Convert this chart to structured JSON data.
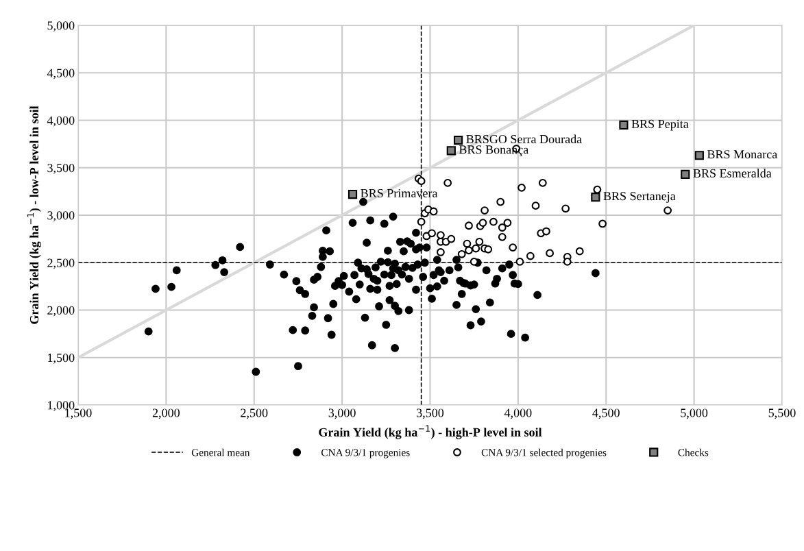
{
  "chart_data": {
    "type": "scatter",
    "xlabel": "Grain Yield (kg ha$^{−1}$) - high-P level in soil",
    "ylabel": "Grain Yield (kg ha$^{−1}$) - low-P level in soil",
    "xlim": [
      1500,
      5500
    ],
    "xticks": [
      {
        "value": 1500,
        "label": "1,500"
      },
      {
        "value": 2000,
        "label": "2,000"
      },
      {
        "value": 2500,
        "label": "2,500"
      },
      {
        "value": 3000,
        "label": "3,000"
      },
      {
        "value": 3500,
        "label": "3,500"
      },
      {
        "value": 4000,
        "label": "4,000"
      },
      {
        "value": 4500,
        "label": "4,500"
      },
      {
        "value": 5000,
        "label": "5,000"
      },
      {
        "value": 5500,
        "label": "5,500"
      }
    ],
    "ylim": [
      1000,
      5000
    ],
    "yticks": [
      {
        "value": 1000,
        "label": "1,000"
      },
      {
        "value": 1500,
        "label": "1,500"
      },
      {
        "value": 2000,
        "label": "2,000"
      },
      {
        "value": 2500,
        "label": "2,500"
      },
      {
        "value": 3000,
        "label": "3,000"
      },
      {
        "value": 3500,
        "label": "3,500"
      },
      {
        "value": 4000,
        "label": "4,000"
      },
      {
        "value": 4500,
        "label": "4,500"
      },
      {
        "value": 5000,
        "label": "5,000"
      }
    ],
    "grid": true,
    "legend": "bottom",
    "ref_lines": [
      {
        "axis": "y",
        "value": 2500,
        "label": "General mean",
        "color": "#000000",
        "line_style": "dashed"
      },
      {
        "axis": "x",
        "value": 3450,
        "color": "#000000",
        "line_style": "dashed"
      }
    ],
    "series": [
      {
        "type": "line",
        "color": "#d9d9d9",
        "marker": "none",
        "x": [
          1500,
          5000
        ],
        "values": [
          1500,
          5000
        ]
      },
      {
        "name": "CNA 9/3/1 progenies",
        "color": "#000000",
        "marker": "circle",
        "x": [
          1900,
          1940,
          2030,
          2060,
          2280,
          2320,
          2330,
          2420,
          2510,
          2590,
          2670,
          2720,
          2740,
          2750,
          2760,
          2790,
          2790,
          2830,
          2840,
          2840,
          2860,
          2880,
          2890,
          2890,
          2910,
          2920,
          2930,
          2940,
          2950,
          2960,
          2980,
          3000,
          3010,
          3040,
          3060,
          3070,
          3080,
          3090,
          3100,
          3110,
          3120,
          3130,
          3140,
          3140,
          3150,
          3160,
          3160,
          3170,
          3180,
          3190,
          3200,
          3200,
          3210,
          3220,
          3240,
          3240,
          3250,
          3260,
          3260,
          3270,
          3270,
          3280,
          3290,
          3290,
          3300,
          3300,
          3300,
          3310,
          3320,
          3320,
          3330,
          3340,
          3350,
          3360,
          3370,
          3380,
          3380,
          3390,
          3400,
          3420,
          3420,
          3420,
          3430,
          3440,
          3460,
          3470,
          3480,
          3500,
          3510,
          3520,
          3540,
          3540,
          3550,
          3560,
          3580,
          3610,
          3650,
          3650,
          3660,
          3670,
          3680,
          3690,
          3700,
          3730,
          3730,
          3750,
          3760,
          3770,
          3790,
          3820,
          3840,
          3870,
          3880,
          3910,
          3950,
          3960,
          3970,
          3980,
          4000,
          4040,
          4110,
          4440
        ],
        "values": [
          1775,
          2225,
          2245,
          2420,
          2475,
          2525,
          2400,
          2665,
          1350,
          2480,
          2375,
          1790,
          2305,
          1410,
          2210,
          1785,
          2170,
          1940,
          2030,
          2320,
          2350,
          2455,
          2625,
          2560,
          2840,
          1915,
          2620,
          1740,
          2065,
          2255,
          2305,
          2265,
          2360,
          2195,
          2920,
          2370,
          2115,
          2500,
          2270,
          2440,
          3140,
          1920,
          2430,
          2710,
          2380,
          2225,
          2945,
          1630,
          2330,
          2450,
          2310,
          2215,
          2040,
          2510,
          2910,
          2375,
          1845,
          2625,
          2505,
          2105,
          2255,
          2370,
          2440,
          2985,
          1600,
          2045,
          2490,
          2275,
          1990,
          2420,
          2720,
          2375,
          2620,
          2455,
          2725,
          2330,
          2000,
          2700,
          2445,
          2215,
          2640,
          2815,
          2480,
          2660,
          2350,
          2500,
          2660,
          2230,
          2120,
          2370,
          2250,
          2530,
          2420,
          2400,
          2310,
          2420,
          2055,
          2530,
          2450,
          2310,
          2170,
          2285,
          2280,
          2260,
          1840,
          2270,
          2010,
          2500,
          1880,
          2420,
          2080,
          2280,
          2330,
          2440,
          2480,
          1750,
          2370,
          2280,
          2275,
          1710,
          2160,
          2390
        ]
      },
      {
        "name": "CNA 9/3/1 selected progenies",
        "color": "#ffffff",
        "marker": "circle",
        "x": [
          3435,
          3450,
          3450,
          3470,
          3480,
          3490,
          3520,
          3510,
          3560,
          3560,
          3560,
          3590,
          3600,
          3620,
          3680,
          3710,
          3720,
          3720,
          3750,
          3760,
          3780,
          3785,
          3800,
          3810,
          3810,
          3830,
          3860,
          3900,
          3910,
          3910,
          3940,
          3970,
          3990,
          4010,
          4020,
          4070,
          4100,
          4130,
          4140,
          4160,
          4180,
          4270,
          4280,
          4280,
          4350,
          4450,
          4480,
          4850
        ],
        "values": [
          3385,
          3360,
          2930,
          3020,
          2780,
          3060,
          3040,
          2810,
          2790,
          2720,
          2610,
          2720,
          3340,
          2750,
          2590,
          2700,
          2890,
          2630,
          2510,
          2650,
          2720,
          2885,
          2920,
          3050,
          2650,
          2640,
          2930,
          3140,
          2770,
          2870,
          2920,
          2660,
          3700,
          2510,
          3290,
          2570,
          3100,
          2810,
          3340,
          2830,
          2600,
          3070,
          2560,
          2510,
          2620,
          3270,
          2910,
          3050
        ]
      },
      {
        "name": "Checks",
        "color": "#808080",
        "marker": "square",
        "x": [
          3060,
          3660,
          3620,
          4600,
          5030,
          4950,
          4440
        ],
        "values": [
          3220,
          3790,
          3680,
          3950,
          3630,
          3430,
          3190
        ]
      }
    ],
    "annotations": [
      {
        "text": "BRS Primavera",
        "x": 3060,
        "y": 3220
      },
      {
        "text": "BRSGO Serra Dourada",
        "x": 3660,
        "y": 3790
      },
      {
        "text": "BRS Bonança",
        "x": 3620,
        "y": 3680
      },
      {
        "text": "BRS Pepita",
        "x": 4600,
        "y": 3950
      },
      {
        "text": "BRS Monarca",
        "x": 5030,
        "y": 3630
      },
      {
        "text": "BRS Esmeralda",
        "x": 4950,
        "y": 3430
      },
      {
        "text": "BRS Sertaneja",
        "x": 4440,
        "y": 3190
      }
    ]
  }
}
